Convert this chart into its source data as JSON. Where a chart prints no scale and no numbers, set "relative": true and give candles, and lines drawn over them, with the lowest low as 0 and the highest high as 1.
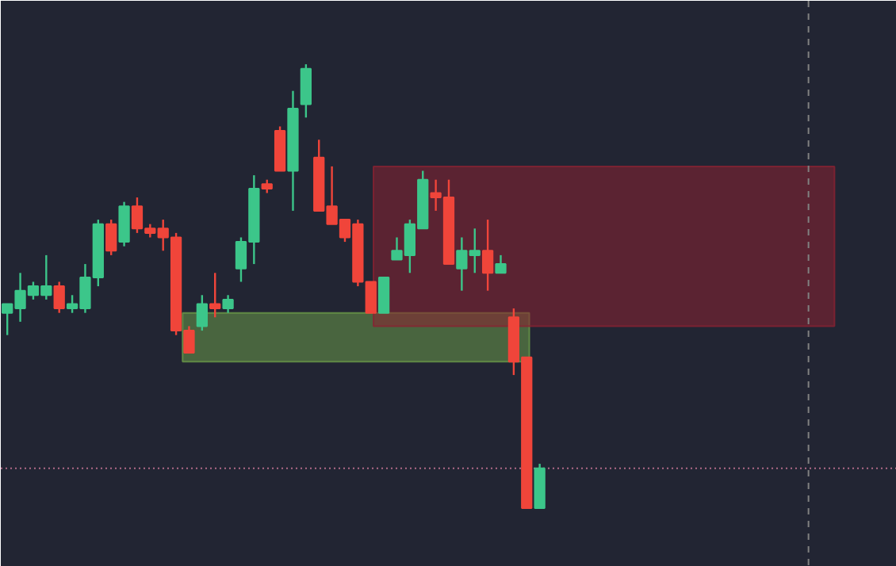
{
  "chart_data": {
    "type": "candlestick",
    "relative": true,
    "tick_labels": false,
    "grid": false,
    "categories": [
      null,
      null,
      null,
      null,
      null,
      null,
      null,
      null,
      null,
      null,
      null,
      null,
      null,
      null,
      null,
      null,
      null,
      null,
      null,
      null,
      null,
      null,
      null,
      null,
      null,
      null,
      null,
      null,
      null,
      null,
      null,
      null,
      null,
      null,
      null,
      null,
      null,
      null,
      null,
      null,
      null,
      null
    ],
    "ohlc": [
      [
        0.44,
        0.46,
        0.39,
        0.46
      ],
      [
        0.45,
        0.53,
        0.42,
        0.49
      ],
      [
        0.48,
        0.51,
        0.47,
        0.5
      ],
      [
        0.48,
        0.57,
        0.47,
        0.5
      ],
      [
        0.5,
        0.51,
        0.44,
        0.45
      ],
      [
        0.45,
        0.48,
        0.44,
        0.46
      ],
      [
        0.45,
        0.55,
        0.44,
        0.52
      ],
      [
        0.52,
        0.65,
        0.5,
        0.64
      ],
      [
        0.64,
        0.65,
        0.57,
        0.58
      ],
      [
        0.6,
        0.69,
        0.59,
        0.68
      ],
      [
        0.68,
        0.7,
        0.62,
        0.63
      ],
      [
        0.63,
        0.64,
        0.61,
        0.62
      ],
      [
        0.63,
        0.65,
        0.58,
        0.61
      ],
      [
        0.61,
        0.62,
        0.39,
        0.4
      ],
      [
        0.4,
        0.41,
        0.35,
        0.35
      ],
      [
        0.41,
        0.48,
        0.4,
        0.46
      ],
      [
        0.46,
        0.53,
        0.43,
        0.45
      ],
      [
        0.45,
        0.48,
        0.44,
        0.47
      ],
      [
        0.54,
        0.61,
        0.51,
        0.6
      ],
      [
        0.6,
        0.75,
        0.55,
        0.72
      ],
      [
        0.73,
        0.74,
        0.71,
        0.72
      ],
      [
        0.85,
        0.86,
        0.76,
        0.76
      ],
      [
        0.76,
        0.94,
        0.67,
        0.9
      ],
      [
        0.91,
        1.0,
        0.88,
        0.99
      ],
      [
        0.79,
        0.83,
        0.67,
        0.67
      ],
      [
        0.68,
        0.77,
        0.64,
        0.64
      ],
      [
        0.65,
        0.65,
        0.6,
        0.61
      ],
      [
        0.64,
        0.65,
        0.5,
        0.51
      ],
      [
        0.51,
        0.51,
        0.44,
        0.44
      ],
      [
        0.44,
        0.52,
        0.44,
        0.52
      ],
      [
        0.56,
        0.61,
        0.56,
        0.58
      ],
      [
        0.57,
        0.65,
        0.53,
        0.64
      ],
      [
        0.63,
        0.76,
        0.63,
        0.74
      ],
      [
        0.71,
        0.74,
        0.67,
        0.7
      ],
      [
        0.7,
        0.74,
        0.55,
        0.55
      ],
      [
        0.54,
        0.61,
        0.49,
        0.58
      ],
      [
        0.57,
        0.63,
        0.53,
        0.58
      ],
      [
        0.58,
        0.65,
        0.49,
        0.53
      ],
      [
        0.53,
        0.57,
        0.53,
        0.55
      ],
      [
        0.43,
        0.45,
        0.3,
        0.33
      ],
      [
        0.34,
        0.34,
        0,
        0
      ],
      [
        0,
        0.1,
        0,
        0.09
      ]
    ],
    "colors": [
      "#3cc68a",
      "#3cc68a",
      "#3cc68a",
      "#3cc68a",
      "#f0453a",
      "#3cc68a",
      "#3cc68a",
      "#3cc68a",
      "#f0453a",
      "#3cc68a",
      "#f0453a",
      "#f0453a",
      "#f0453a",
      "#f0453a",
      "#f0453a",
      "#3cc68a",
      "#f0453a",
      "#3cc68a",
      "#3cc68a",
      "#3cc68a",
      "#f0453a",
      "#f0453a",
      "#3cc68a",
      "#3cc68a",
      "#f0453a",
      "#f0453a",
      "#f0453a",
      "#f0453a",
      "#f0453a",
      "#3cc68a",
      "#3cc68a",
      "#3cc68a",
      "#3cc68a",
      "#f0453a",
      "#f0453a",
      "#3cc68a",
      "#3cc68a",
      "#f0453a",
      "#3cc68a",
      "#f0453a",
      "#f0453a",
      "#3cc68a"
    ],
    "bands": [
      {
        "axis": "y",
        "from": 0.33,
        "to": 0.44,
        "color": "#6a9a48"
      },
      {
        "axis": "y",
        "from": 0.41,
        "to": 0.77,
        "color": "#8a2232"
      }
    ],
    "ref_lines": [
      {
        "axis": "y",
        "value": 0.09,
        "color": "#b06a88",
        "line_style": "dotted"
      }
    ]
  }
}
